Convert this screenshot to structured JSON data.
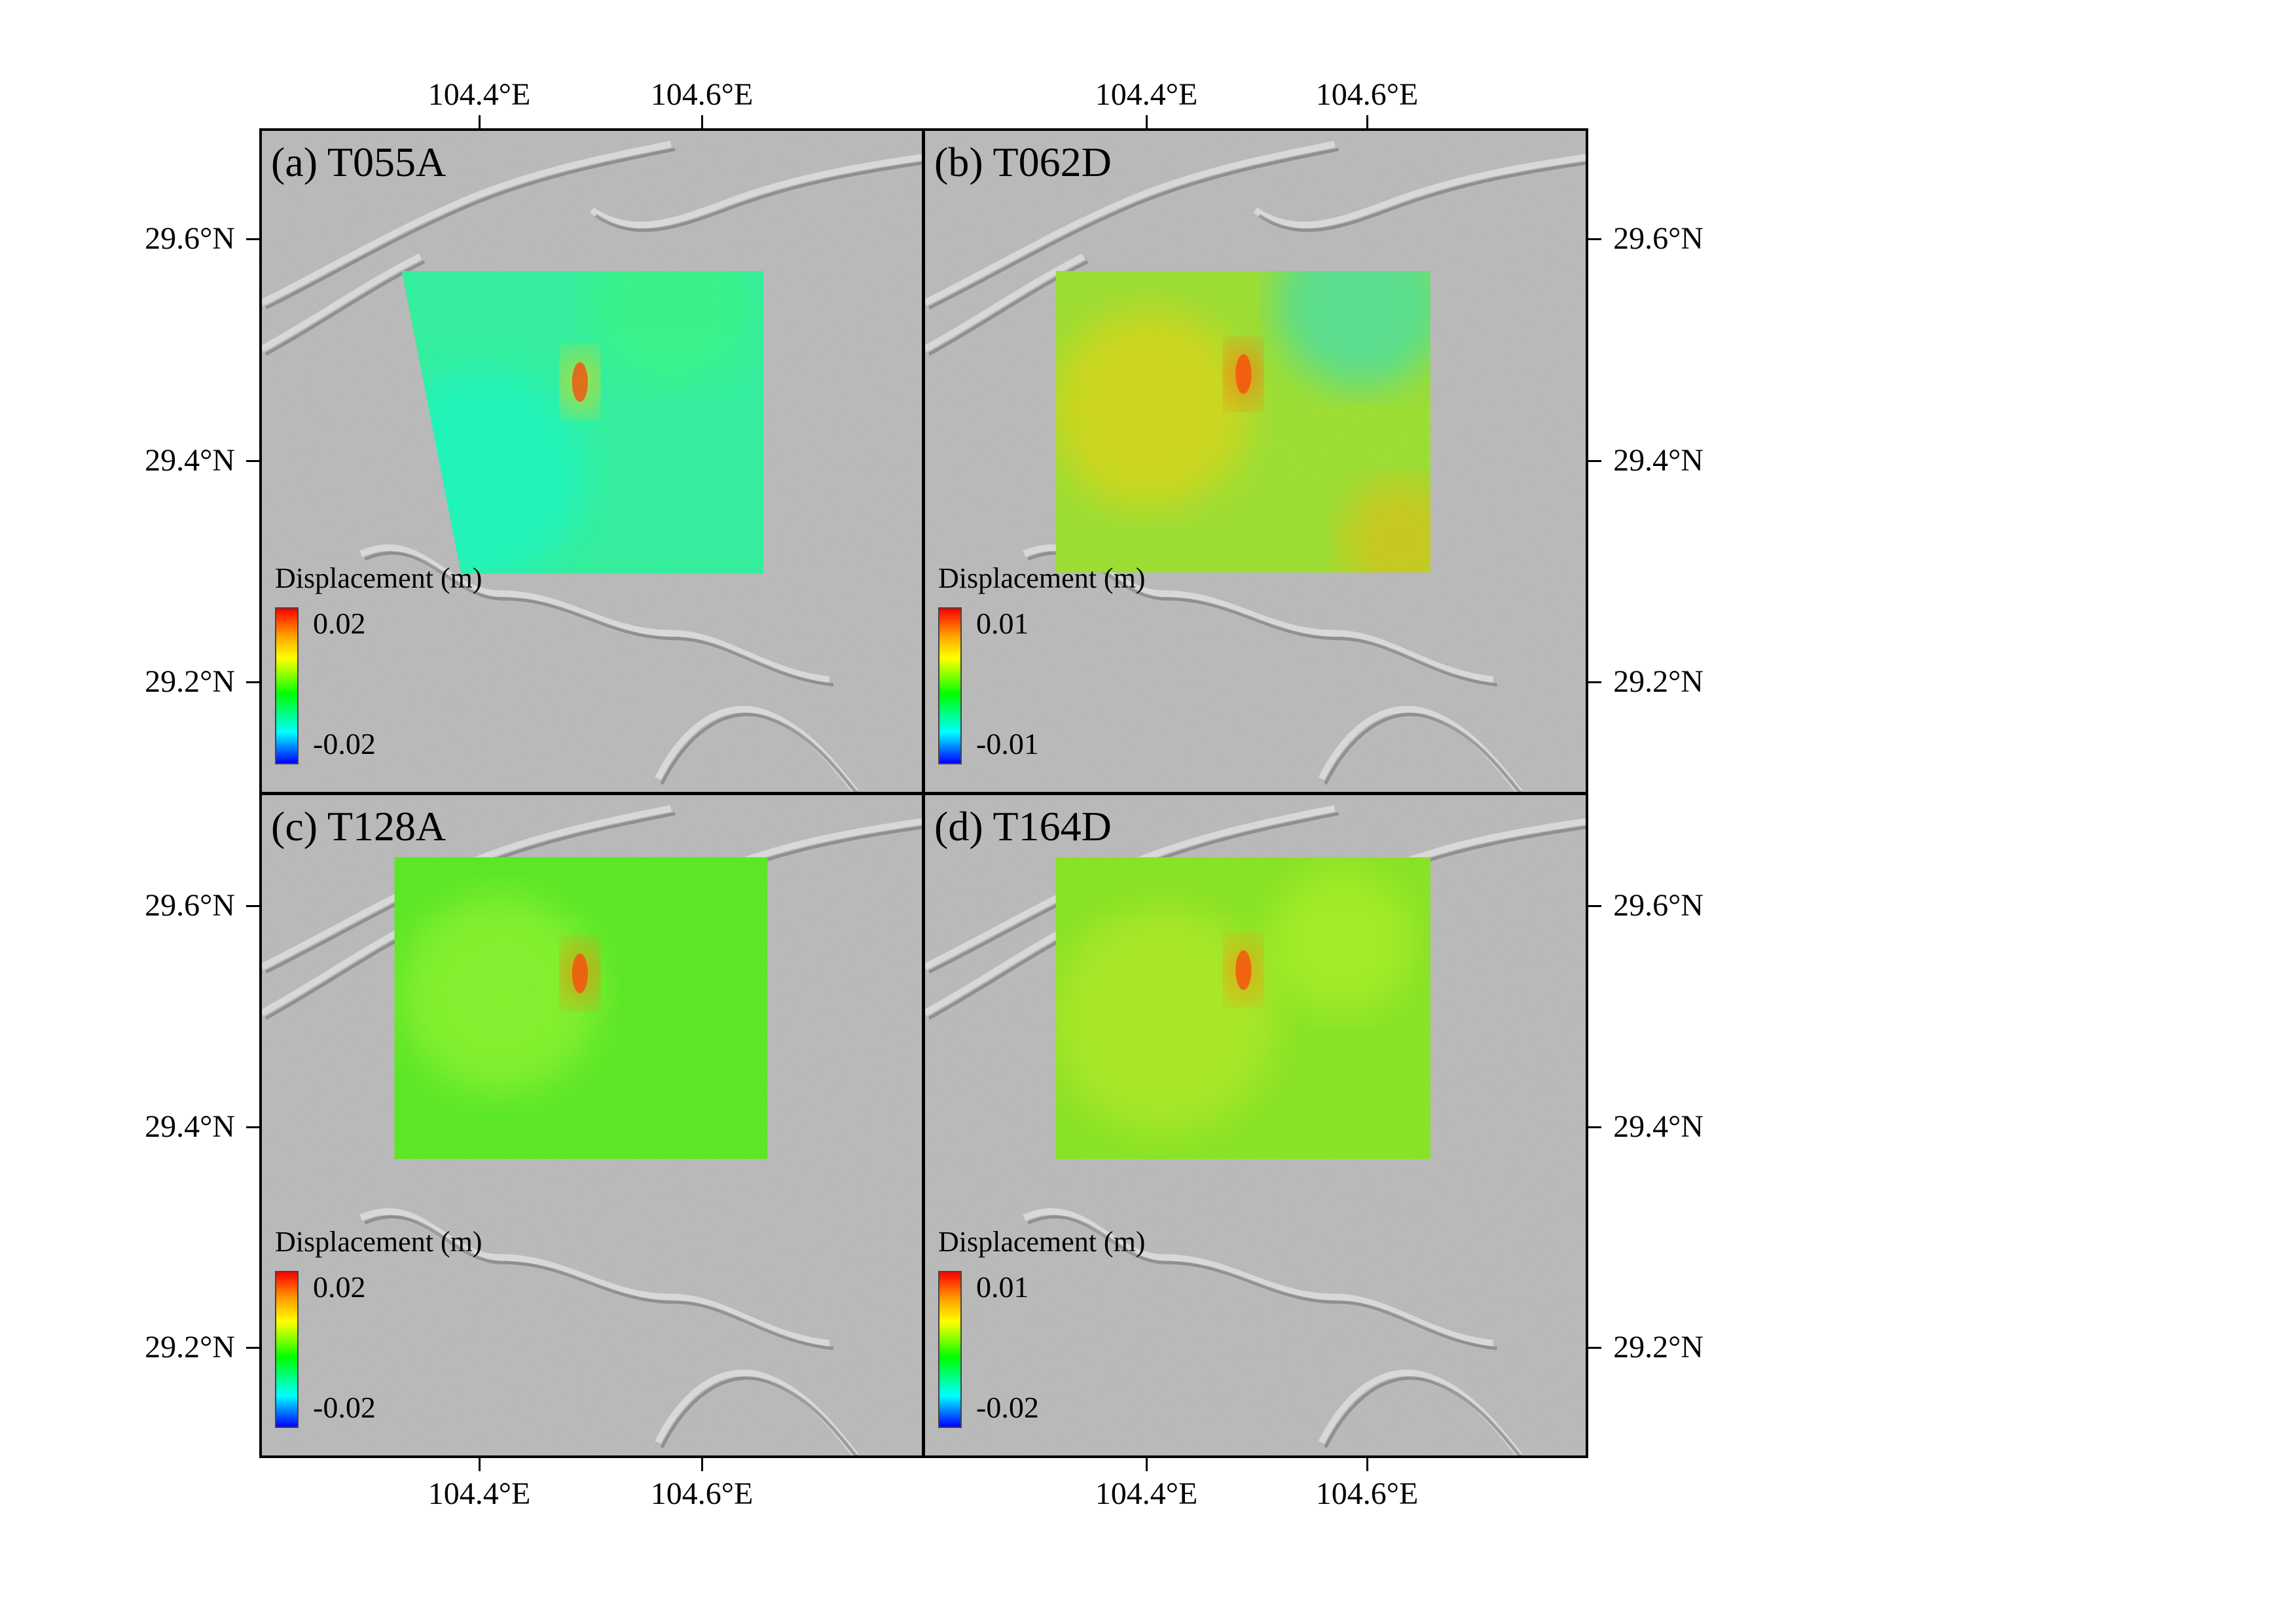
{
  "panels": [
    {
      "label": "(a) T055A",
      "legend_title": "Displacement (m)",
      "legend_max": "0.02",
      "legend_min": "-0.02",
      "field_base": "#2df29c",
      "anomaly_color": "#ffd000"
    },
    {
      "label": "(b) T062D",
      "legend_title": "Displacement (m)",
      "legend_max": "0.01",
      "legend_min": "-0.01",
      "field_base": "#9be02c",
      "anomaly_color": "#ff6a00"
    },
    {
      "label": "(c) T128A",
      "legend_title": "Displacement (m)",
      "legend_max": "0.02",
      "legend_min": "-0.02",
      "field_base": "#57ea1e",
      "anomaly_color": "#ff7a00"
    },
    {
      "label": "(d) T164D",
      "legend_title": "Displacement (m)",
      "legend_max": "0.01",
      "legend_min": "-0.02",
      "field_base": "#86e51e",
      "anomaly_color": "#ff8c00"
    }
  ],
  "axes": {
    "lon_labels": [
      "104.4°E",
      "104.6°E"
    ],
    "lat_labels": [
      "29.6°N",
      "29.4°N",
      "29.2°N"
    ]
  },
  "colors": {
    "hillshade": "#b9b9b9",
    "ridge_light": "#e6e6e6",
    "ridge_dark": "#6e6e6e",
    "colormap": [
      "#0000ff",
      "#00ffff",
      "#00ff00",
      "#ffff00",
      "#ff0000"
    ]
  }
}
